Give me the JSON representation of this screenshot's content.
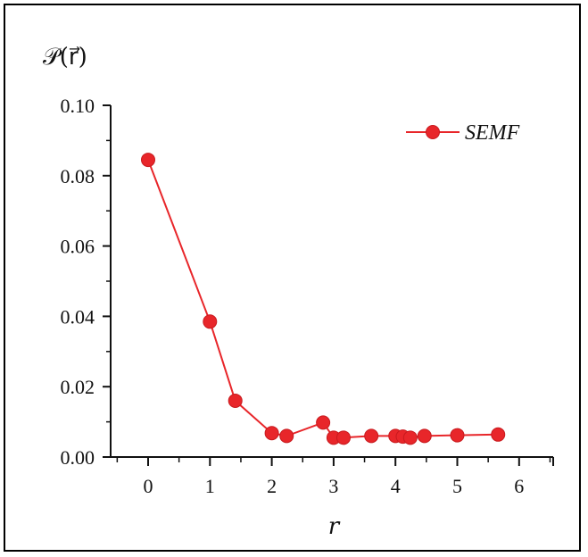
{
  "chart_data": {
    "type": "line",
    "title": "",
    "ylabel": "𝒫(r⃗)",
    "xlabel": "r",
    "xlim": [
      -0.6,
      6.3
    ],
    "ylim": [
      0,
      0.1
    ],
    "x_ticks": [
      "0",
      "1",
      "2",
      "3",
      "4",
      "5",
      "6"
    ],
    "y_ticks": [
      "0.00",
      "0.02",
      "0.04",
      "0.06",
      "0.08",
      "0.10"
    ],
    "grid": false,
    "legend_position": "top-right",
    "colors": {
      "series": "#e8262a"
    },
    "series": [
      {
        "name": "SEMF",
        "points": [
          {
            "x": 0.0,
            "y": 0.0845
          },
          {
            "x": 1.0,
            "y": 0.0385
          },
          {
            "x": 1.41,
            "y": 0.016
          },
          {
            "x": 2.0,
            "y": 0.0068
          },
          {
            "x": 2.24,
            "y": 0.006
          },
          {
            "x": 2.83,
            "y": 0.0098
          },
          {
            "x": 3.0,
            "y": 0.0055
          },
          {
            "x": 3.16,
            "y": 0.0055
          },
          {
            "x": 3.61,
            "y": 0.006
          },
          {
            "x": 4.0,
            "y": 0.006
          },
          {
            "x": 4.12,
            "y": 0.0058
          },
          {
            "x": 4.24,
            "y": 0.0055
          },
          {
            "x": 4.47,
            "y": 0.006
          },
          {
            "x": 5.0,
            "y": 0.0062
          },
          {
            "x": 5.66,
            "y": 0.0064
          }
        ]
      }
    ]
  }
}
